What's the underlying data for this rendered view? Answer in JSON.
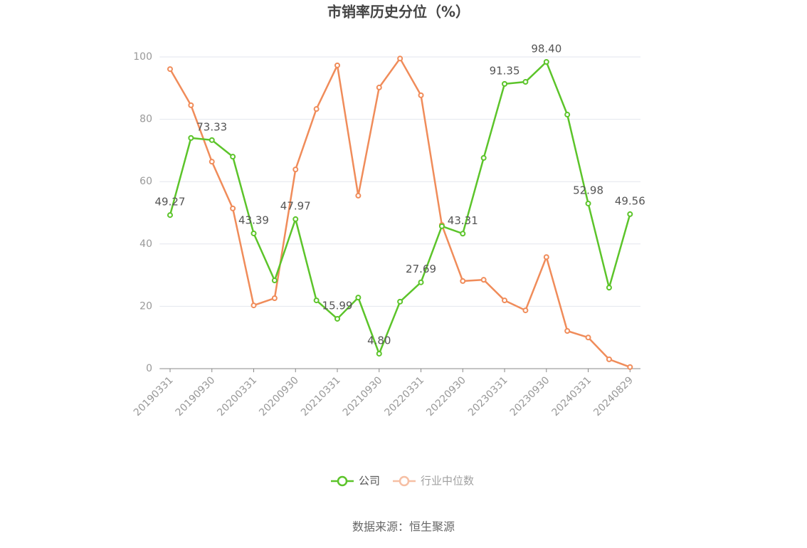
{
  "chart_data": {
    "type": "line",
    "title": "市销率历史分位（%）",
    "categories": [
      "20190331",
      null,
      "20190930",
      null,
      "20200331",
      null,
      "20200930",
      null,
      "20210331",
      null,
      "20210930",
      null,
      "20220331",
      null,
      "20220930",
      null,
      "20230331",
      null,
      "20230930",
      null,
      "20240331",
      null,
      "20240829"
    ],
    "series": [
      {
        "name": "公司",
        "color": "#5cc42a",
        "values": [
          49.27,
          74.0,
          73.33,
          68.0,
          43.39,
          28.3,
          47.97,
          21.9,
          15.99,
          22.8,
          4.8,
          21.5,
          27.69,
          45.7,
          43.31,
          67.6,
          91.35,
          92.0,
          98.4,
          81.5,
          52.98,
          26.0,
          49.56
        ],
        "value_labels": [
          "49.27",
          null,
          "73.33",
          null,
          "43.39",
          null,
          "47.97",
          null,
          "15.99",
          null,
          "4.80",
          null,
          "27.69",
          null,
          "43.31",
          null,
          "91.35",
          null,
          "98.40",
          null,
          "52.98",
          null,
          "49.56"
        ]
      },
      {
        "name": "行业中位数",
        "color": "#f08c5a",
        "values": [
          96.1,
          84.5,
          66.4,
          51.4,
          20.3,
          22.6,
          63.9,
          83.3,
          97.3,
          55.5,
          90.2,
          99.5,
          87.7,
          46.1,
          28.1,
          28.5,
          21.9,
          18.7,
          35.8,
          12.1,
          10.0,
          3.0,
          0.5
        ]
      }
    ],
    "ylim": [
      0,
      100
    ],
    "yticks": [
      0,
      20,
      40,
      60,
      80,
      100
    ],
    "grid": true,
    "source": "数据来源：恒生聚源"
  }
}
